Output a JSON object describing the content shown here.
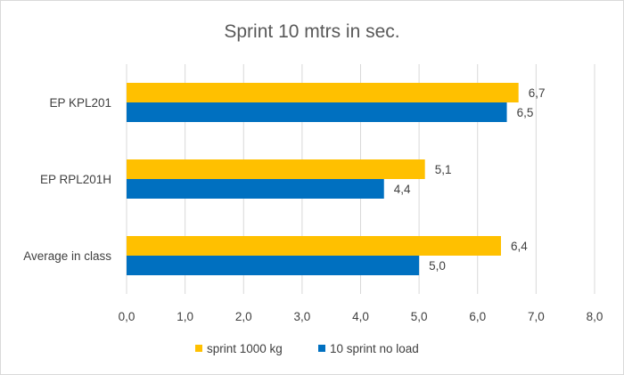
{
  "chart_data": {
    "type": "bar",
    "orientation": "horizontal",
    "title": "Sprint 10 mtrs in sec.",
    "categories": [
      "EP KPL201",
      "EP RPL201H",
      "Average in class"
    ],
    "series": [
      {
        "name": "sprint 1000 kg",
        "color": "#FFC000",
        "values": [
          6.7,
          5.1,
          6.4
        ],
        "labels": [
          "6,7",
          "5,1",
          "6,4"
        ]
      },
      {
        "name": "10 sprint no load",
        "color": "#0070C0",
        "values": [
          6.5,
          4.4,
          5.0
        ],
        "labels": [
          "6,5",
          "4,4",
          "5,0"
        ]
      }
    ],
    "xlim": [
      0,
      8
    ],
    "x_ticks": [
      0,
      1,
      2,
      3,
      4,
      5,
      6,
      7,
      8
    ],
    "x_tick_labels": [
      "0,0",
      "1,0",
      "2,0",
      "3,0",
      "4,0",
      "5,0",
      "6,0",
      "7,0",
      "8,0"
    ],
    "grid": true,
    "legend": "bottom"
  }
}
